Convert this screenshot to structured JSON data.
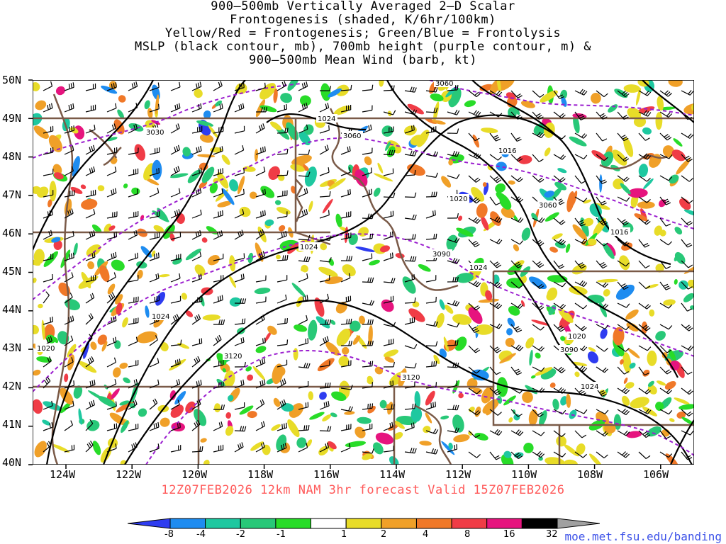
{
  "title_lines": [
    "900—500mb Vertically Averaged 2—D Scalar",
    "Frontogenesis (shaded, K/6hr/100km)",
    "Yellow/Red = Frontogenesis;  Green/Blue = Frontolysis",
    "MSLP (black contour, mb), 700mb height (purple contour, m) &",
    "900—500mb Mean Wind (barb, kt)"
  ],
  "lat_labels": [
    "50N",
    "49N",
    "48N",
    "47N",
    "46N",
    "45N",
    "44N",
    "43N",
    "42N",
    "41N",
    "40N"
  ],
  "lon_labels": [
    "124W",
    "122W",
    "120W",
    "118W",
    "116W",
    "114W",
    "112W",
    "110W",
    "108W",
    "106W"
  ],
  "footer": "12Z07FEB2026  12km NAM 3hr forecast Valid 15Z07FEB2026",
  "credit": "moe.met.fsu.edu/banding",
  "colorbar": {
    "labels": [
      "-8",
      "-4",
      "-2",
      "-1",
      "1",
      "2",
      "4",
      "8",
      "16",
      "32"
    ],
    "colors": [
      "#2e3cf0",
      "#1e8cf0",
      "#1ec8a0",
      "#28c878",
      "#28dc28",
      "#ffffff",
      "#e8dc28",
      "#f0a028",
      "#f07828",
      "#f03c46",
      "#e6147e",
      "#000000",
      "#a0a0a0"
    ]
  },
  "contour_labels": {
    "mslp": [
      "1024",
      "1016",
      "1020",
      "1016",
      "1024",
      "1024",
      "1020",
      "1024",
      "1020",
      "1024"
    ],
    "height": [
      "3030",
      "3060",
      "3060",
      "3090",
      "3090",
      "3120",
      "3120",
      "3060"
    ]
  },
  "colors": {
    "mslp": "#000000",
    "height": "#9b1ecf",
    "borders": "#7a5a48",
    "footer": "#ff5a5a",
    "credit": "#3d52e8"
  }
}
